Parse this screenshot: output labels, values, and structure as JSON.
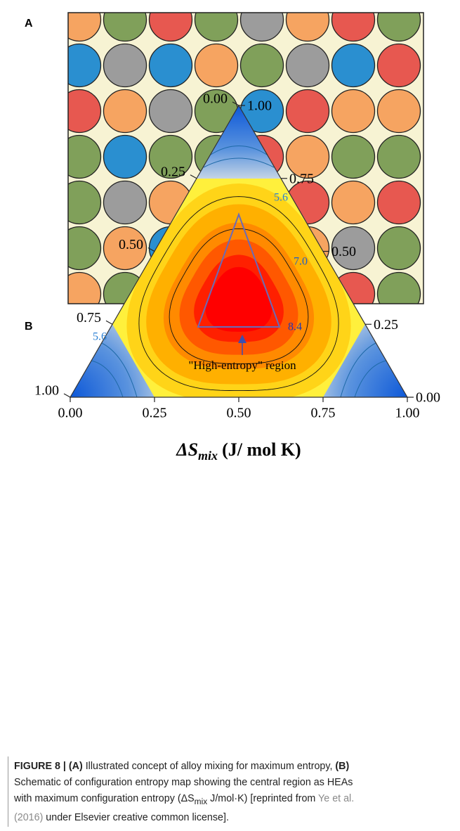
{
  "panel_a": {
    "label": "A"
  },
  "panel_b": {
    "label": "B",
    "left_ticks": [
      "0.00",
      "0.25",
      "0.50",
      "0.75",
      "1.00"
    ],
    "right_ticks": [
      "0.00",
      "0.25",
      "0.50",
      "0.75",
      "1.00"
    ],
    "bottom_ticks": [
      "0.00",
      "0.25",
      "0.50",
      "0.75",
      "1.00"
    ],
    "contour_labels": [
      "5.6",
      "7.0",
      "8.4",
      "5.6"
    ],
    "region_label": "\"High-entropy\" region",
    "axis_title": {
      "symbol": "ΔS",
      "subscript": "mix",
      "unit": "(J/ mol K)"
    }
  },
  "caption": {
    "segments": [
      "FIGURE 8 | (A)",
      " Illustrated concept of alloy mixing for maximum entropy, ",
      "(B)",
      "Schematic of configuration entropy map showing the central region as HEAs",
      "with maximum configuration entropy (ΔS",
      "mix",
      " J/mol·K) [reprinted from ",
      "Ye et al.",
      "(2016)",
      " under Elsevier creative common license]."
    ]
  }
}
